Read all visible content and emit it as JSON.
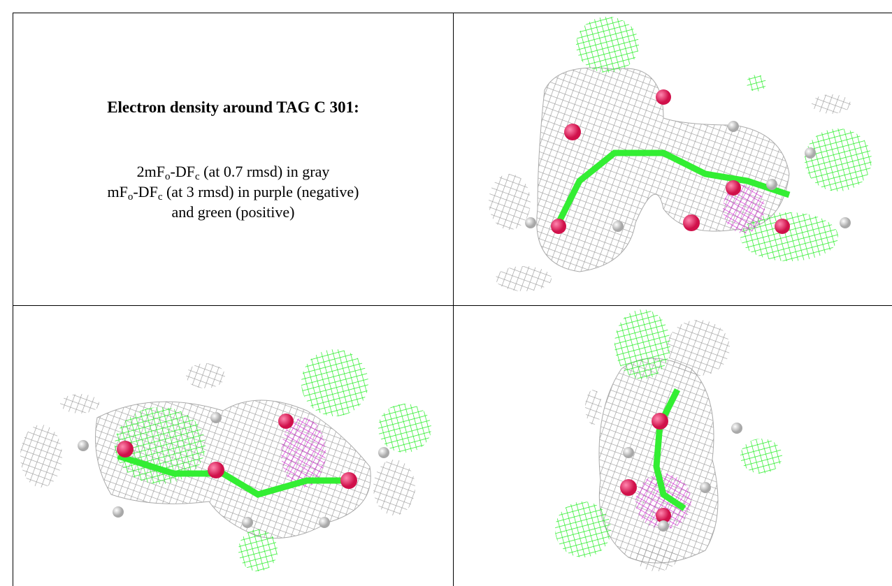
{
  "caption": {
    "title": "Electron density around TAG C 301:",
    "lines": [
      [
        {
          "text": "2mF"
        },
        {
          "sub": "o"
        },
        {
          "text": "-DF"
        },
        {
          "sub": "c"
        },
        {
          "text": " (at 0.7 rmsd) in gray"
        }
      ],
      [
        {
          "text": "mF"
        },
        {
          "sub": "o"
        },
        {
          "text": "-DF"
        },
        {
          "sub": "c"
        },
        {
          "text": " (at 3 rmsd) in purple (negative)"
        }
      ],
      [
        {
          "text": "and green (positive)"
        }
      ]
    ]
  }
}
